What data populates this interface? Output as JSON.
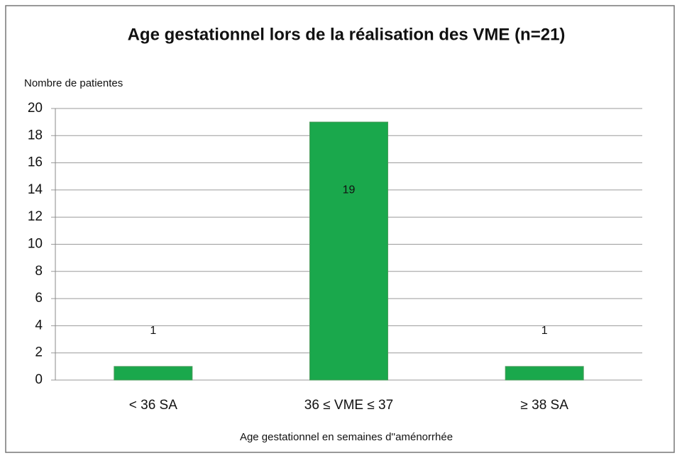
{
  "chart_data": {
    "type": "bar",
    "title": "Age gestationnel lors de la réalisation des VME (n=21)",
    "y_label": "Nombre de patientes",
    "x_label": "Age gestationnel  en semaines d''aménorrhée",
    "categories": [
      "< 36 SA",
      "36 ≤ VME ≤ 37",
      "≥ 38 SA"
    ],
    "values": [
      1,
      19,
      1
    ],
    "color": "#1aa84c",
    "ylim": [
      0,
      20
    ],
    "yticks": [
      0,
      2,
      4,
      6,
      8,
      10,
      12,
      14,
      16,
      18,
      20
    ],
    "grid": true
  }
}
